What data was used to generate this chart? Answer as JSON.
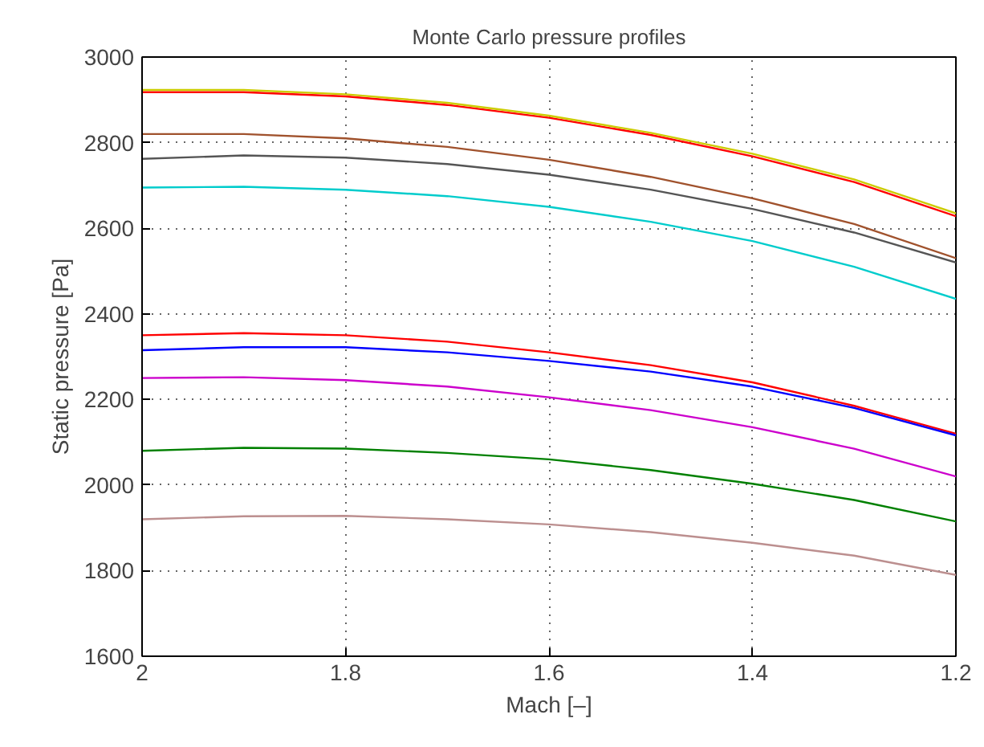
{
  "chart_data": {
    "type": "line",
    "title": "Monte Carlo pressure profiles",
    "xlabel": "Mach [–]",
    "ylabel": "Static pressure [Pa]",
    "x": [
      2,
      1.9,
      1.8,
      1.7,
      1.6,
      1.5,
      1.4,
      1.3,
      1.2
    ],
    "xlim": [
      2,
      1.2
    ],
    "xticks": [
      2,
      1.8,
      1.6,
      1.4,
      1.2
    ],
    "ylim": [
      1600,
      3000
    ],
    "yticks": [
      1600,
      1800,
      2000,
      2200,
      2400,
      2600,
      2800,
      3000
    ],
    "grid": true,
    "line_style": "solid",
    "marker": "none",
    "series": [
      {
        "color": "#ff0000",
        "values": [
          2918,
          2918,
          2908,
          2888,
          2858,
          2818,
          2768,
          2708,
          2628
        ]
      },
      {
        "color": "#cccc00",
        "values": [
          2923,
          2923,
          2913,
          2893,
          2863,
          2823,
          2774,
          2714,
          2635
        ]
      },
      {
        "color": "#a0522d",
        "values": [
          2820,
          2820,
          2810,
          2790,
          2760,
          2720,
          2670,
          2610,
          2530
        ]
      },
      {
        "color": "#555555",
        "values": [
          2762,
          2770,
          2765,
          2750,
          2725,
          2690,
          2645,
          2590,
          2520
        ]
      },
      {
        "color": "#00cccc",
        "values": [
          2695,
          2697,
          2690,
          2675,
          2650,
          2615,
          2570,
          2510,
          2435
        ]
      },
      {
        "color": "#ff0000",
        "values": [
          2350,
          2355,
          2350,
          2335,
          2310,
          2280,
          2240,
          2185,
          2120
        ]
      },
      {
        "color": "#0000ff",
        "values": [
          2315,
          2322,
          2322,
          2310,
          2290,
          2265,
          2230,
          2180,
          2116
        ]
      },
      {
        "color": "#cc00cc",
        "values": [
          2250,
          2252,
          2245,
          2230,
          2205,
          2175,
          2135,
          2085,
          2020
        ]
      },
      {
        "color": "#008000",
        "values": [
          2080,
          2087,
          2085,
          2075,
          2060,
          2035,
          2003,
          1965,
          1915
        ]
      },
      {
        "color": "#bc8f8f",
        "values": [
          1920,
          1927,
          1928,
          1920,
          1908,
          1890,
          1865,
          1835,
          1790
        ]
      }
    ]
  }
}
